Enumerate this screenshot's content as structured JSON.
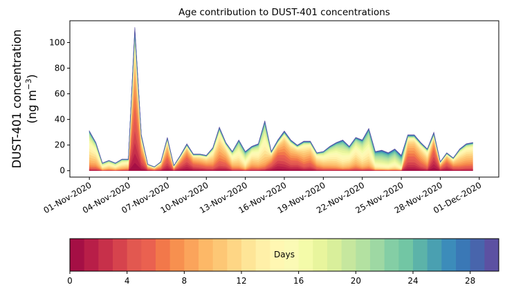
{
  "chart_data": {
    "type": "area",
    "stacked": true,
    "title": "Age contribution to DUST-401 concentrations",
    "ylabel_line1": "DUST-401 concentration",
    "ylabel_line2_prefix": "(ng m",
    "ylabel_line2_sup": "−3",
    "ylabel_line2_suffix": ")",
    "ylim": [
      -5,
      117
    ],
    "yticks": [
      0,
      20,
      40,
      60,
      80,
      100
    ],
    "ytick_labels": [
      "0",
      "20",
      "40",
      "60",
      "80",
      "100"
    ],
    "x_start": "01-Nov-2020",
    "x_step_days": 0.5,
    "xlim_days": [
      -1.5,
      31.5
    ],
    "xticks_days": [
      0,
      3,
      6,
      9,
      12,
      15,
      18,
      21,
      24,
      27,
      30
    ],
    "xtick_labels": [
      "01-Nov-2020",
      "04-Nov-2020",
      "07-Nov-2020",
      "10-Nov-2020",
      "13-Nov-2020",
      "16-Nov-2020",
      "19-Nov-2020",
      "22-Nov-2020",
      "25-Nov-2020",
      "28-Nov-2020",
      "01-Dec-2020"
    ],
    "total": [
      31,
      22,
      6,
      8,
      6,
      9,
      9,
      112,
      28,
      5,
      3,
      7,
      26,
      4,
      12,
      21,
      13,
      13,
      12,
      18,
      34,
      22,
      15,
      24,
      15,
      19,
      21,
      39,
      15,
      24,
      31,
      24,
      20,
      23,
      23,
      14,
      15,
      19,
      22,
      24,
      19,
      26,
      24,
      33,
      15,
      16,
      14,
      17,
      12,
      28,
      28,
      22,
      17,
      30,
      7,
      14,
      10,
      17,
      21,
      22
    ],
    "mean_age_days": [
      13,
      12,
      14,
      13,
      14,
      13,
      12,
      5,
      6,
      8,
      9,
      8,
      6,
      9,
      5,
      4,
      6,
      7,
      8,
      10,
      9,
      8,
      12,
      14,
      16,
      12,
      13,
      14,
      6,
      4,
      6,
      7,
      6,
      9,
      8,
      10,
      12,
      13,
      14,
      16,
      14,
      13,
      15,
      15,
      18,
      19,
      19,
      18,
      20,
      6,
      6,
      8,
      10,
      3,
      7,
      5,
      8,
      10,
      10,
      10
    ],
    "colorbar": {
      "label": "Days",
      "range": [
        0,
        30
      ],
      "ticks": [
        0,
        4,
        8,
        12,
        16,
        20,
        24,
        28
      ],
      "tick_labels": [
        "0",
        "4",
        "8",
        "12",
        "16",
        "20",
        "24",
        "28"
      ],
      "colors": [
        "#a50f45",
        "#b81e48",
        "#c7304a",
        "#d6434d",
        "#e25850",
        "#ea6150",
        "#f2784a",
        "#f7904f",
        "#fba45b",
        "#fdb867",
        "#fdc775",
        "#fed685",
        "#fee597",
        "#fff0a8",
        "#fff7b2",
        "#fbfab5",
        "#f4fba9",
        "#e8f59d",
        "#d9ef9b",
        "#c6e79e",
        "#b3e1a1",
        "#9ed8a3",
        "#84cea5",
        "#72c6a4",
        "#5cb3a9",
        "#4aa0b1",
        "#3c8cba",
        "#3a78b6",
        "#4865ac",
        "#5c51a2"
      ]
    }
  }
}
